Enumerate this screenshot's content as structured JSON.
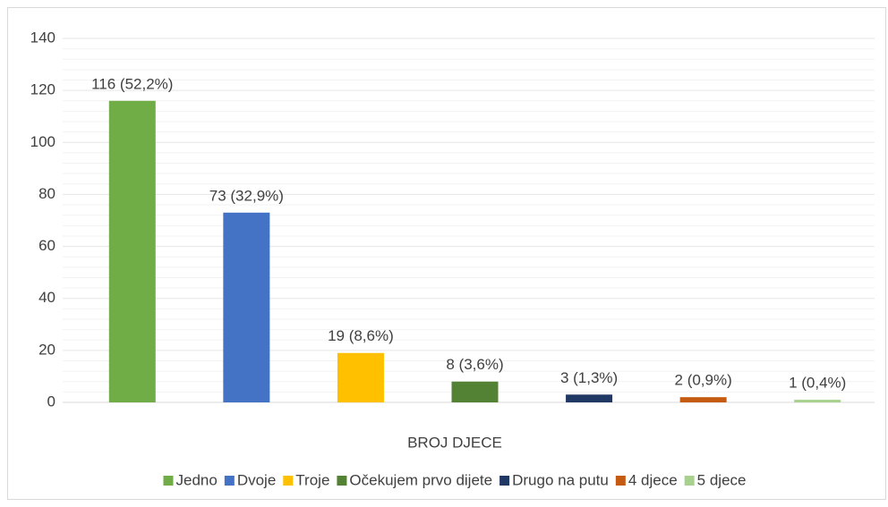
{
  "chart_data": {
    "type": "bar",
    "x_label": "BROJ DJECE",
    "series": [
      {
        "name": "Jedno",
        "color": "#70ad47",
        "values": [
          116
        ],
        "value_labels": [
          "116 (52,2%)"
        ]
      },
      {
        "name": "Dvoje",
        "color": "#4472c4",
        "values": [
          73
        ],
        "value_labels": [
          "73 (32,9%)"
        ]
      },
      {
        "name": "Troje",
        "color": "#ffc000",
        "values": [
          19
        ],
        "value_labels": [
          "19 (8,6%)"
        ]
      },
      {
        "name": "Očekujem prvo dijete",
        "color": "#548235",
        "values": [
          8
        ],
        "value_labels": [
          "8 (3,6%)"
        ]
      },
      {
        "name": "Drugo na putu",
        "color": "#203864",
        "values": [
          3
        ],
        "value_labels": [
          "3 (1,3%)"
        ]
      },
      {
        "name": "4 djece",
        "color": "#c55a11",
        "values": [
          2
        ],
        "value_labels": [
          "2 (0,9%)"
        ]
      },
      {
        "name": "5 djece",
        "color": "#a9d18e",
        "values": [
          1
        ],
        "value_labels": [
          "1 (0,4%)"
        ]
      }
    ],
    "ylim": [
      0,
      140
    ],
    "yticks": [
      0,
      20,
      40,
      60,
      80,
      100,
      120,
      140
    ],
    "grid": true,
    "legend": "bottom"
  }
}
